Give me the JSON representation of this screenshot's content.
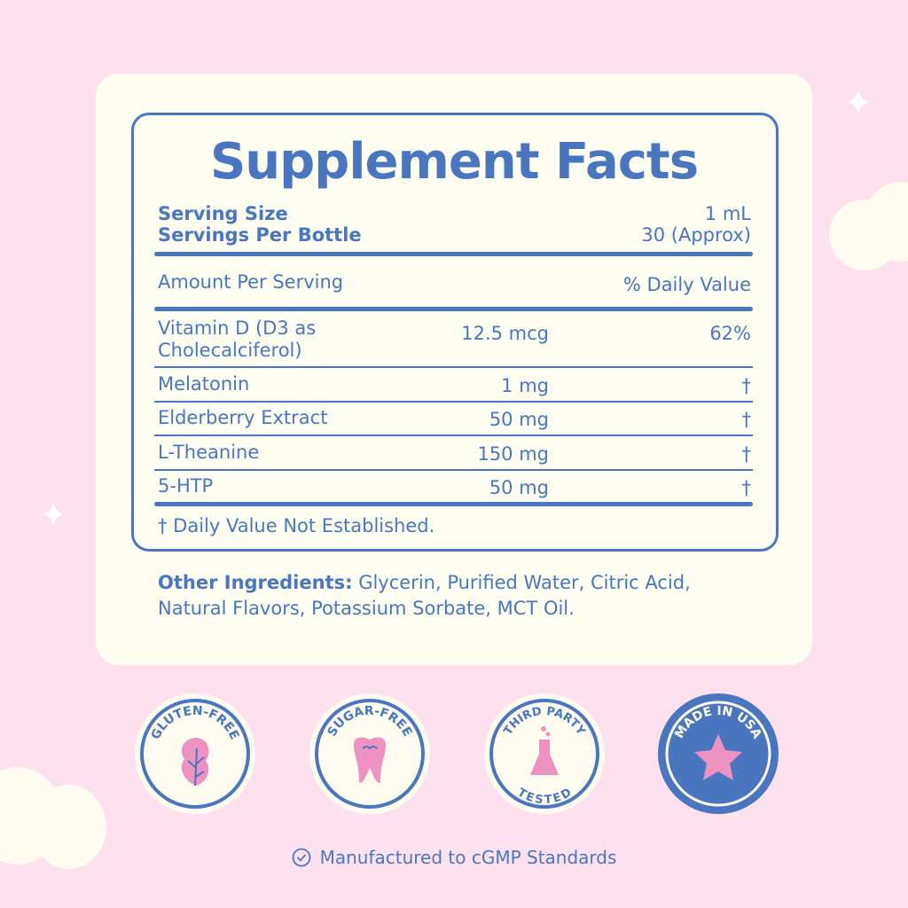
{
  "title": "Supplement Facts",
  "serving": {
    "size_label": "Serving Size",
    "size_value": "1 mL",
    "per_container_label": "Servings Per Bottle",
    "per_container_value": "30 (Approx)"
  },
  "header": {
    "amount_label": "Amount Per Serving",
    "dv_label": "% Daily Value"
  },
  "rows": [
    {
      "name_line1": "Vitamin D (D3 as",
      "name_line2": "Cholecalciferol)",
      "amount": "12.5 mcg",
      "dv": "62%"
    },
    {
      "name": "Melatonin",
      "amount": "1 mg",
      "dv": "†"
    },
    {
      "name": "Elderberry Extract",
      "amount": "50 mg",
      "dv": "†"
    },
    {
      "name": "L-Theanine",
      "amount": "150 mg",
      "dv": "†"
    },
    {
      "name": "5-HTP",
      "amount": "50 mg",
      "dv": "†"
    }
  ],
  "footnote": "† Daily Value Not Established.",
  "other_ingredients": {
    "label": "Other Ingredients:",
    "line1": " Glycerin, Purified Water, Citric Acid,",
    "line2": "Natural Flavors, Potassium Sorbate, MCT Oil."
  },
  "badges": [
    {
      "text": "GLUTEN-FREE",
      "icon": "leaf-icon"
    },
    {
      "text": "SUGAR-FREE",
      "icon": "tooth-icon"
    },
    {
      "text_top": "THIRD PARTY",
      "text_bottom": "TESTED",
      "icon": "flask-icon"
    },
    {
      "text": "MADE IN USA",
      "icon": "star-icon"
    }
  ],
  "footer": {
    "text": "Manufactured to cGMP Standards",
    "icon": "check-circle-icon"
  },
  "colors": {
    "blue": "#4a76c0",
    "pink": "#fde1ef",
    "cream": "#fdfdf2",
    "accent_pink": "#ee92c2"
  }
}
